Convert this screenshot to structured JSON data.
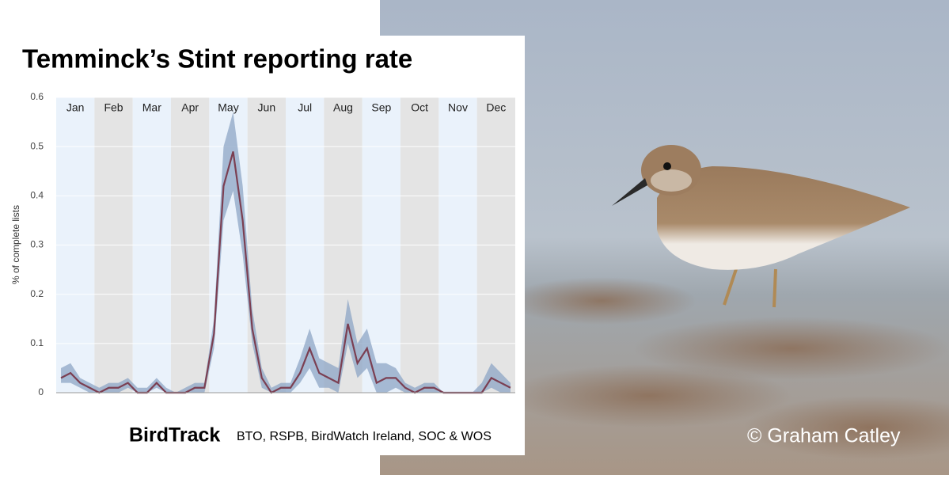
{
  "chart_data": {
    "type": "line",
    "title": "Temminck’s Stint reporting rate",
    "y_label": "% of complete lists",
    "months": [
      "Jan",
      "Feb",
      "Mar",
      "Apr",
      "May",
      "Jun",
      "Jul",
      "Aug",
      "Sep",
      "Oct",
      "Nov",
      "Dec"
    ],
    "values": [
      0.03,
      0.04,
      0.02,
      0.01,
      0.0,
      0.01,
      0.01,
      0.02,
      0.0,
      0.0,
      0.02,
      0.0,
      0.0,
      0.0,
      0.01,
      0.01,
      0.12,
      0.42,
      0.49,
      0.35,
      0.13,
      0.03,
      0.0,
      0.01,
      0.01,
      0.04,
      0.09,
      0.04,
      0.03,
      0.02,
      0.14,
      0.06,
      0.09,
      0.02,
      0.03,
      0.03,
      0.01,
      0.0,
      0.01,
      0.01,
      0.0,
      0.0,
      0.0,
      0.0,
      0.0,
      0.03,
      0.02,
      0.01
    ],
    "band_upper": [
      0.05,
      0.06,
      0.03,
      0.02,
      0.01,
      0.02,
      0.02,
      0.03,
      0.01,
      0.01,
      0.03,
      0.01,
      0.0,
      0.01,
      0.02,
      0.02,
      0.15,
      0.5,
      0.57,
      0.42,
      0.17,
      0.05,
      0.01,
      0.02,
      0.02,
      0.07,
      0.13,
      0.07,
      0.06,
      0.05,
      0.19,
      0.1,
      0.13,
      0.06,
      0.06,
      0.05,
      0.02,
      0.01,
      0.02,
      0.02,
      0.0,
      0.0,
      0.0,
      0.0,
      0.02,
      0.06,
      0.04,
      0.02
    ],
    "band_lower": [
      0.02,
      0.02,
      0.01,
      0.0,
      0.0,
      0.0,
      0.0,
      0.01,
      0.0,
      0.0,
      0.01,
      0.0,
      0.0,
      0.0,
      0.0,
      0.0,
      0.09,
      0.35,
      0.41,
      0.28,
      0.1,
      0.01,
      0.0,
      0.0,
      0.0,
      0.02,
      0.05,
      0.01,
      0.01,
      0.0,
      0.1,
      0.03,
      0.05,
      0.0,
      0.0,
      0.01,
      0.0,
      0.0,
      0.0,
      0.0,
      0.0,
      0.0,
      0.0,
      0.0,
      0.0,
      0.01,
      0.0,
      0.0
    ],
    "line_color": "#7b3f52",
    "band_color": "#8ea5c5",
    "month_colors": [
      "#eaf2fb",
      "#e4e4e4"
    ],
    "ylim": [
      0,
      0.6
    ],
    "yticks": [
      0,
      0.1,
      0.2,
      0.3,
      0.4,
      0.5,
      0.6
    ],
    "grid": true
  },
  "footer": {
    "brand": "BirdTrack",
    "partners": "BTO, RSPB, BirdWatch Ireland, SOC & WOS"
  },
  "photo": {
    "credit": "© Graham Catley"
  }
}
